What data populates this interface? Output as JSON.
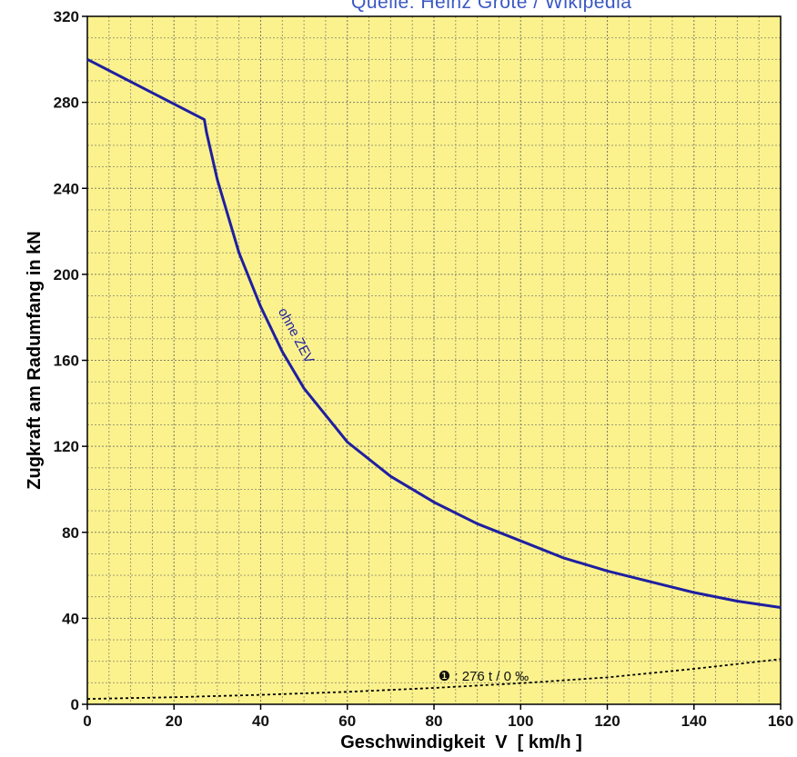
{
  "source_text": "Quelle: Heinz Grote / Wikipedia",
  "colors": {
    "plot_background": "#fbf28e",
    "grid": "#7d7868",
    "axis": "#000000",
    "curve": "#1f1fa0",
    "resistance_line": "#000000"
  },
  "chart_data": {
    "type": "line",
    "title": "",
    "xlabel": "Geschwindigkeit  V  [ km/h ]",
    "ylabel": "Zugkraft am Radumfang in kN",
    "xlim": [
      0,
      160
    ],
    "ylim": [
      0,
      320
    ],
    "x_ticks": [
      0,
      20,
      40,
      60,
      80,
      100,
      120,
      140,
      160
    ],
    "y_ticks": [
      0,
      40,
      80,
      120,
      160,
      200,
      240,
      280,
      320
    ],
    "x_tick_labels": [
      "0",
      "20",
      "40",
      "60",
      "80",
      "100",
      "120",
      "140",
      "160"
    ],
    "y_tick_labels": [
      "0",
      "40",
      "80",
      "120",
      "160",
      "200",
      "240",
      "280",
      "320"
    ],
    "grid": true,
    "series": [
      {
        "name": "ohne ZEV",
        "style": "solid",
        "x": [
          0,
          27,
          27.5,
          30,
          35,
          40,
          45,
          50,
          60,
          70,
          80,
          90,
          100,
          110,
          120,
          130,
          140,
          150,
          160
        ],
        "y": [
          300,
          272,
          266,
          244,
          210,
          185,
          164,
          147,
          122,
          106,
          94,
          84,
          76,
          68,
          62,
          57,
          52,
          48,
          45
        ]
      },
      {
        "name": "",
        "style": "dotted",
        "x": [
          0,
          20,
          40,
          60,
          80,
          100,
          120,
          140,
          160
        ],
        "y": [
          2.5,
          3.3,
          4.4,
          5.8,
          7.6,
          9.8,
          12.5,
          16.5,
          21
        ]
      }
    ],
    "annotations": [
      {
        "text": "ohne ZEV",
        "x": 44,
        "y": 183,
        "rotation": 62
      },
      {
        "text": "❶ : 276 t  /  0 ‰",
        "x": 81,
        "y": 11
      }
    ]
  }
}
